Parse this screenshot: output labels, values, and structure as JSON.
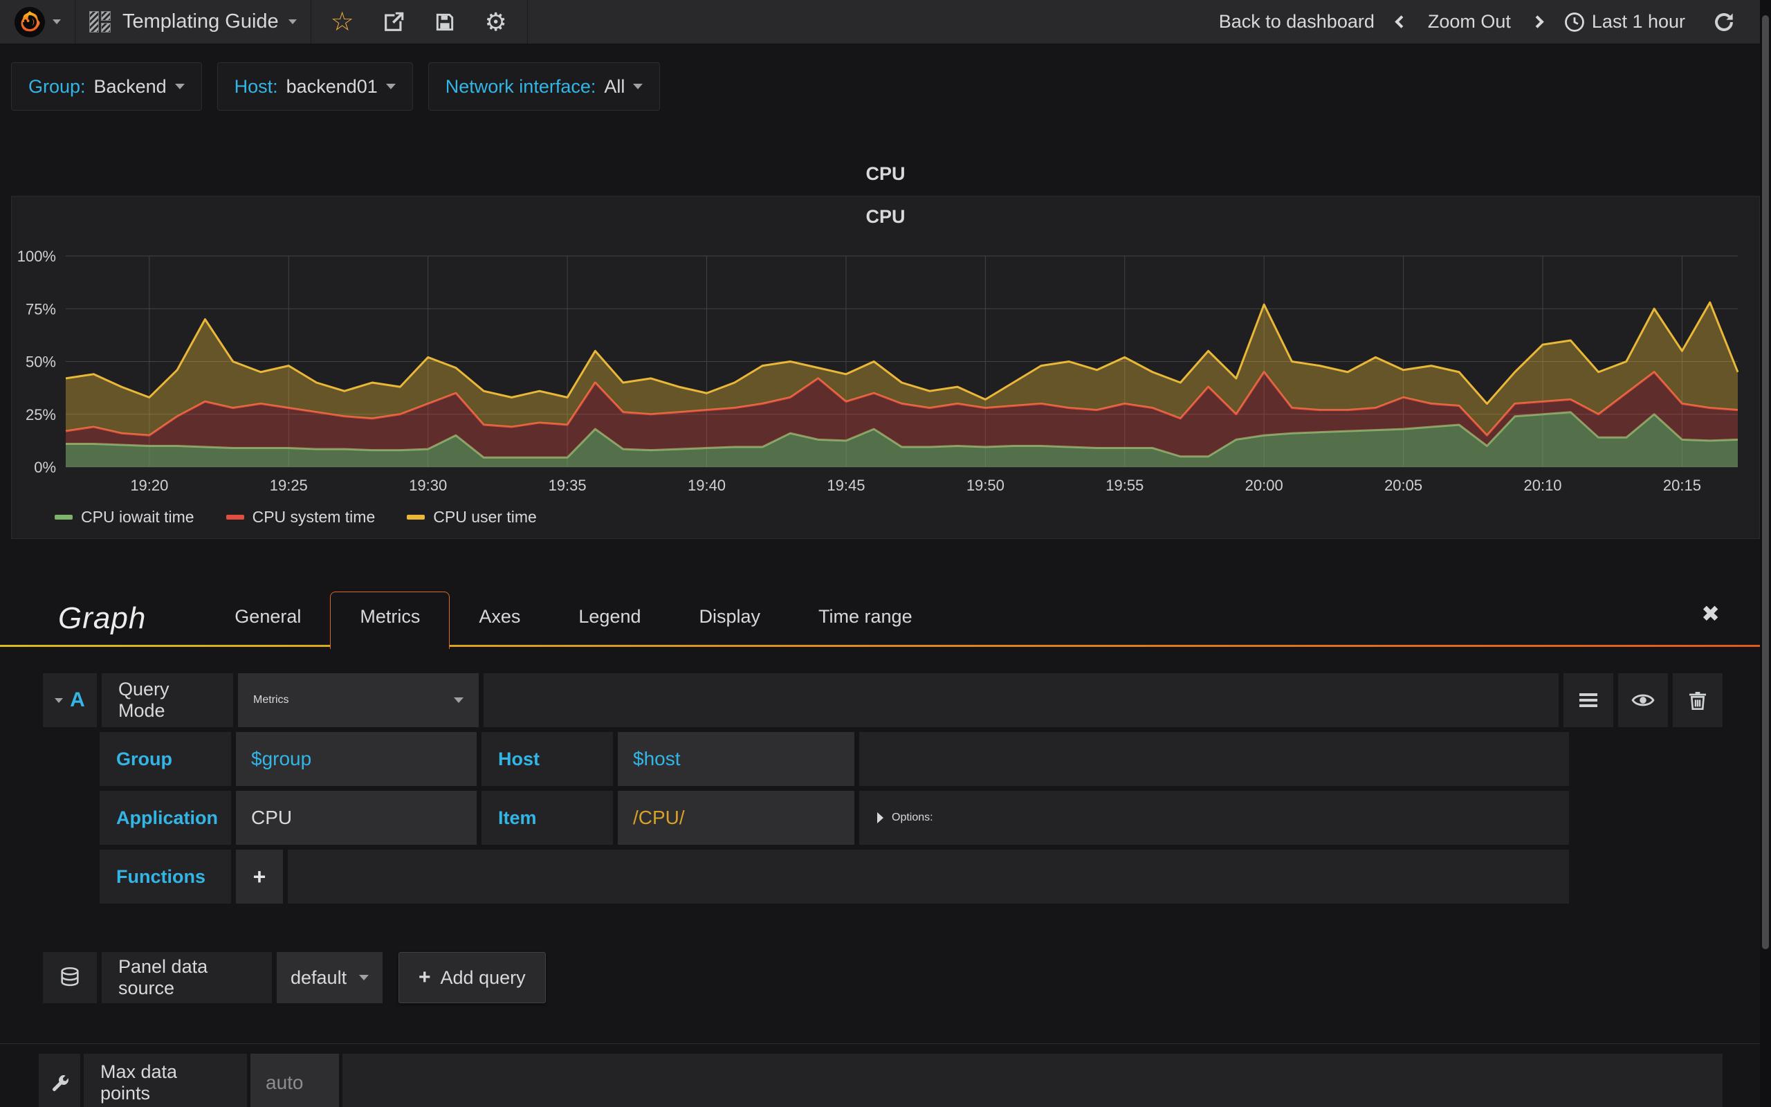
{
  "colors": {
    "background": "#151517",
    "navbar": "#29292b",
    "panel": "#1f1f21",
    "cell": "#232325",
    "input": "#2e2e30",
    "accent_blue": "#33b5e5",
    "accent_orange": "#e0591d",
    "star_yellow": "#e8a93c",
    "item_gold": "#d8a128",
    "text": "#d8d9da"
  },
  "navbar": {
    "dashboard_title": "Templating Guide",
    "back_to_dashboard": "Back to dashboard",
    "zoom_out": "Zoom Out",
    "time_range": "Last 1 hour"
  },
  "variables": [
    {
      "label": "Group:",
      "value": "Backend"
    },
    {
      "label": "Host:",
      "value": "backend01"
    },
    {
      "label": "Network interface:",
      "value": "All"
    }
  ],
  "panel": {
    "title": "CPU",
    "chart_title": "CPU"
  },
  "chart_data": {
    "type": "area",
    "stacked": true,
    "title": "CPU",
    "ylim": [
      0,
      100
    ],
    "y_ticks": [
      0,
      25,
      50,
      75,
      100
    ],
    "y_tick_suffix": "%",
    "x_start": "19:17",
    "x_end": "20:17",
    "point_interval_minutes": 1,
    "grid": true,
    "legend_position": "bottom-left",
    "x_ticks": [
      {
        "minute": 3,
        "label": "19:20"
      },
      {
        "minute": 8,
        "label": "19:25"
      },
      {
        "minute": 13,
        "label": "19:30"
      },
      {
        "minute": 18,
        "label": "19:35"
      },
      {
        "minute": 23,
        "label": "19:40"
      },
      {
        "minute": 28,
        "label": "19:45"
      },
      {
        "minute": 33,
        "label": "19:50"
      },
      {
        "minute": 38,
        "label": "19:55"
      },
      {
        "minute": 43,
        "label": "20:00"
      },
      {
        "minute": 48,
        "label": "20:05"
      },
      {
        "minute": 53,
        "label": "20:10"
      },
      {
        "minute": 58,
        "label": "20:15"
      }
    ],
    "series": [
      {
        "name": "CPU iowait time",
        "color": "#7eb26d",
        "fill_opacity": 0.55,
        "values": [
          11,
          11,
          10.5,
          10,
          10,
          9.5,
          9,
          9,
          9,
          8.5,
          8.5,
          8,
          8,
          8.5,
          15,
          4.5,
          4.5,
          4.5,
          4.5,
          18,
          8.5,
          8,
          8.5,
          9,
          9.5,
          9.5,
          16,
          13,
          12.5,
          18,
          9.5,
          9.5,
          10,
          9.5,
          10,
          10,
          9.5,
          9,
          9,
          9,
          5,
          5,
          13,
          15,
          16,
          16.5,
          17,
          17.5,
          18,
          19,
          20,
          10,
          24,
          25,
          26,
          14,
          14,
          25,
          13,
          12.5,
          13
        ]
      },
      {
        "name": "CPU system time",
        "color": "#e24d42",
        "fill_opacity": 0.33,
        "values": [
          6,
          8,
          5.5,
          5,
          14,
          21.5,
          19,
          21,
          19,
          17.5,
          15.5,
          15,
          17,
          21.5,
          20,
          15.5,
          14.5,
          16.5,
          15.5,
          22,
          17.5,
          17,
          17.5,
          18,
          18.5,
          20.5,
          17,
          29,
          18.5,
          17,
          20.5,
          18.5,
          20,
          18.5,
          19,
          20,
          18.5,
          18,
          21,
          19,
          18,
          33,
          12,
          30,
          12,
          10.5,
          10,
          10.5,
          15,
          11,
          9,
          5,
          6,
          6,
          6,
          11,
          21,
          20,
          17,
          15.5,
          14
        ]
      },
      {
        "name": "CPU user time",
        "color": "#eab839",
        "fill_opacity": 0.36,
        "values": [
          25,
          25,
          22,
          18,
          22,
          39,
          22,
          15,
          20,
          14,
          12,
          17,
          13,
          22,
          12,
          16,
          14,
          15,
          13,
          15,
          14,
          17,
          12,
          8,
          12,
          18,
          17,
          5,
          13,
          15,
          10,
          8,
          8,
          4,
          11,
          18,
          22,
          19,
          22,
          17,
          17,
          17,
          17,
          32,
          22,
          21,
          18,
          24,
          13,
          18,
          16,
          15,
          15,
          27,
          28,
          20,
          15,
          30,
          25,
          50,
          18
        ]
      }
    ]
  },
  "editor": {
    "panel_type": "Graph",
    "tabs": [
      {
        "label": "General"
      },
      {
        "label": "Metrics",
        "active": true
      },
      {
        "label": "Axes"
      },
      {
        "label": "Legend"
      },
      {
        "label": "Display"
      },
      {
        "label": "Time range"
      }
    ],
    "query": {
      "ref": "A",
      "query_mode_label": "Query Mode",
      "query_mode_value": "Metrics",
      "group_label": "Group",
      "group_value": "$group",
      "host_label": "Host",
      "host_value": "$host",
      "application_label": "Application",
      "application_value": "CPU",
      "item_label": "Item",
      "item_value": "/CPU/",
      "options_label": "Options:",
      "functions_label": "Functions",
      "add_function_label": "+"
    },
    "datasource": {
      "label": "Panel data source",
      "value": "default",
      "add_query_plus": "+",
      "add_query_label": "Add query"
    },
    "max_data_points": {
      "label": "Max data points",
      "placeholder": "auto"
    }
  }
}
